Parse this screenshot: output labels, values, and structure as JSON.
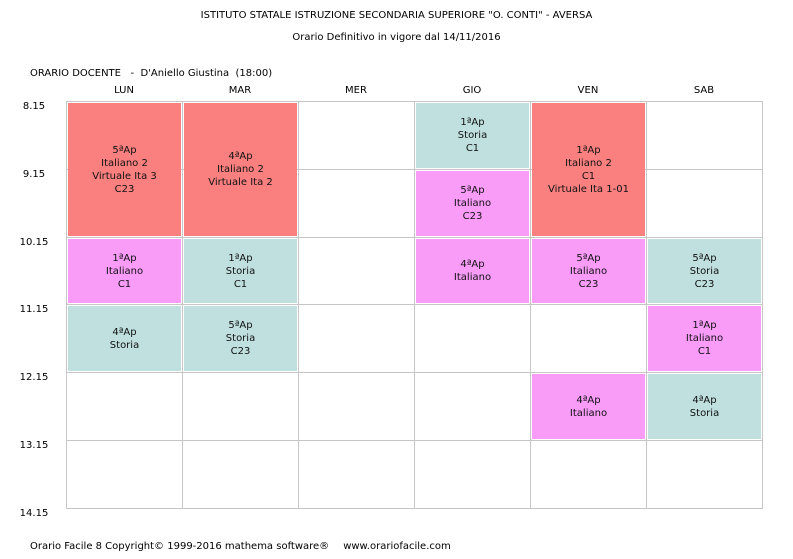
{
  "header": {
    "institute": "ISTITUTO STATALE ISTRUZIONE SECONDARIA SUPERIORE \"O. CONTI\" - AVERSA",
    "subtitle": "Orario Definitivo in vigore dal 14/11/2016"
  },
  "teacher": {
    "prefix": "ORARIO DOCENTE   -  ",
    "name": "D'Aniello Giustina",
    "hours": "(18:00)"
  },
  "days": [
    "LUN",
    "MAR",
    "MER",
    "GIO",
    "VEN",
    "SAB"
  ],
  "times": [
    "8.15",
    "9.15",
    "10.15",
    "11.15",
    "12.15",
    "13.15",
    "14.15"
  ],
  "lessons": [
    {
      "day": 0,
      "start": 0,
      "span": 2,
      "color": "#fa8080",
      "lines": [
        "5ªAp",
        "Italiano 2",
        "Virtuale Ita 3",
        "C23"
      ]
    },
    {
      "day": 1,
      "start": 0,
      "span": 2,
      "color": "#fa8080",
      "lines": [
        "4ªAp",
        "Italiano 2",
        "Virtuale Ita 2"
      ]
    },
    {
      "day": 3,
      "start": 0,
      "span": 1,
      "color": "#bfe0df",
      "lines": [
        "1ªAp",
        "Storia",
        "C1"
      ]
    },
    {
      "day": 3,
      "start": 1,
      "span": 1,
      "color": "#f99cf8",
      "lines": [
        "5ªAp",
        "Italiano",
        "C23"
      ]
    },
    {
      "day": 4,
      "start": 0,
      "span": 2,
      "color": "#fa8080",
      "lines": [
        "1ªAp",
        "Italiano 2",
        "C1",
        "Virtuale Ita 1-01"
      ]
    },
    {
      "day": 0,
      "start": 2,
      "span": 1,
      "color": "#f99cf8",
      "lines": [
        "1ªAp",
        "Italiano",
        "C1"
      ]
    },
    {
      "day": 1,
      "start": 2,
      "span": 1,
      "color": "#bfe0df",
      "lines": [
        "1ªAp",
        "Storia",
        "C1"
      ]
    },
    {
      "day": 3,
      "start": 2,
      "span": 1,
      "color": "#f99cf8",
      "lines": [
        "4ªAp",
        "Italiano"
      ]
    },
    {
      "day": 4,
      "start": 2,
      "span": 1,
      "color": "#f99cf8",
      "lines": [
        "5ªAp",
        "Italiano",
        "C23"
      ]
    },
    {
      "day": 5,
      "start": 2,
      "span": 1,
      "color": "#bfe0df",
      "lines": [
        "5ªAp",
        "Storia",
        "C23"
      ]
    },
    {
      "day": 0,
      "start": 3,
      "span": 1,
      "color": "#bfe0df",
      "lines": [
        "4ªAp",
        "Storia"
      ]
    },
    {
      "day": 1,
      "start": 3,
      "span": 1,
      "color": "#bfe0df",
      "lines": [
        "5ªAp",
        "Storia",
        "C23"
      ]
    },
    {
      "day": 5,
      "start": 3,
      "span": 1,
      "color": "#f99cf8",
      "lines": [
        "1ªAp",
        "Italiano",
        "C1"
      ]
    },
    {
      "day": 4,
      "start": 4,
      "span": 1,
      "color": "#f99cf8",
      "lines": [
        "4ªAp",
        "Italiano"
      ]
    },
    {
      "day": 5,
      "start": 4,
      "span": 1,
      "color": "#bfe0df",
      "lines": [
        "4ªAp",
        "Storia"
      ]
    }
  ],
  "footer": {
    "product": "Orario Facile 8  Copyright© 1999-2016 mathema software®",
    "website": "www.orariofacile.com"
  }
}
